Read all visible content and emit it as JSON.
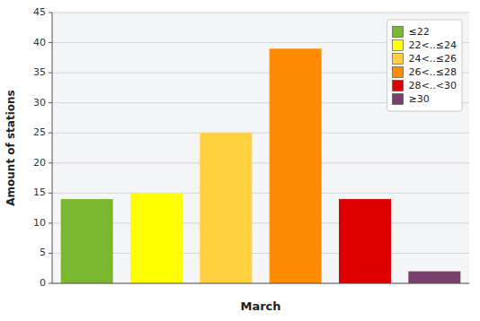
{
  "chart_data": {
    "type": "bar",
    "xlabel": "March",
    "ylabel": "Amount of stations",
    "categories": [
      "≤22",
      "22<..≤24",
      "24<..≤26",
      "26<..≤28",
      "28<..<30",
      "≥30"
    ],
    "values": [
      14,
      15,
      25,
      39,
      14,
      2
    ],
    "colors": [
      "#7cb82f",
      "#ffff00",
      "#ffd040",
      "#ff8c00",
      "#dd0000",
      "#7b3f6e"
    ],
    "ylim": [
      0,
      45
    ],
    "yticks": [
      0,
      5,
      10,
      15,
      20,
      25,
      30,
      35,
      40,
      45
    ],
    "grid": true,
    "legend": "upper right",
    "tick_labels": "y"
  }
}
